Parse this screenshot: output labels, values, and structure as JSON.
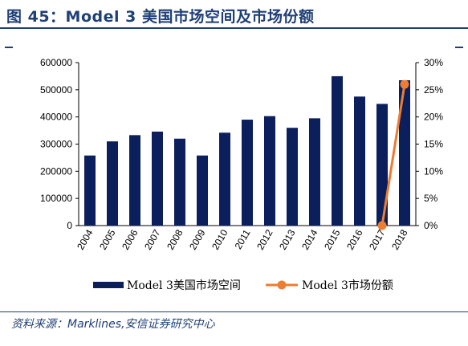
{
  "figure_title": "图 45：Model 3 美国市场空间及市场份额",
  "source_text": "资料来源：Marklines,安信证券研究中心",
  "colors": {
    "bar": "#0b1f5c",
    "line": "#ed7d31",
    "accent": "#1f3f77"
  },
  "chart_data": {
    "type": "bar",
    "categories": [
      "2004",
      "2005",
      "2006",
      "2007",
      "2008",
      "2009",
      "2010",
      "2011",
      "2012",
      "2013",
      "2014",
      "2015",
      "2016",
      "2017",
      "2018"
    ],
    "series": [
      {
        "name": "Model 3美国市场空间",
        "type": "bar",
        "axis": "left",
        "values": [
          258000,
          310000,
          333000,
          346000,
          320000,
          258000,
          342000,
          390000,
          403000,
          360000,
          395000,
          550000,
          475000,
          448000,
          535000
        ]
      },
      {
        "name": "Model 3市场份额",
        "type": "line",
        "axis": "right",
        "points": [
          {
            "x": "2017",
            "y": 0.0
          },
          {
            "x": "2018",
            "y": 0.26
          }
        ]
      }
    ],
    "y_left": {
      "min": 0,
      "max": 600000,
      "ticks": [
        "0",
        "100000",
        "200000",
        "300000",
        "400000",
        "500000",
        "600000"
      ]
    },
    "y_right": {
      "min": 0,
      "max": 0.3,
      "ticks": [
        "0%",
        "5%",
        "10%",
        "15%",
        "20%",
        "25%",
        "30%"
      ]
    },
    "legend_position": "bottom",
    "grid": false
  }
}
